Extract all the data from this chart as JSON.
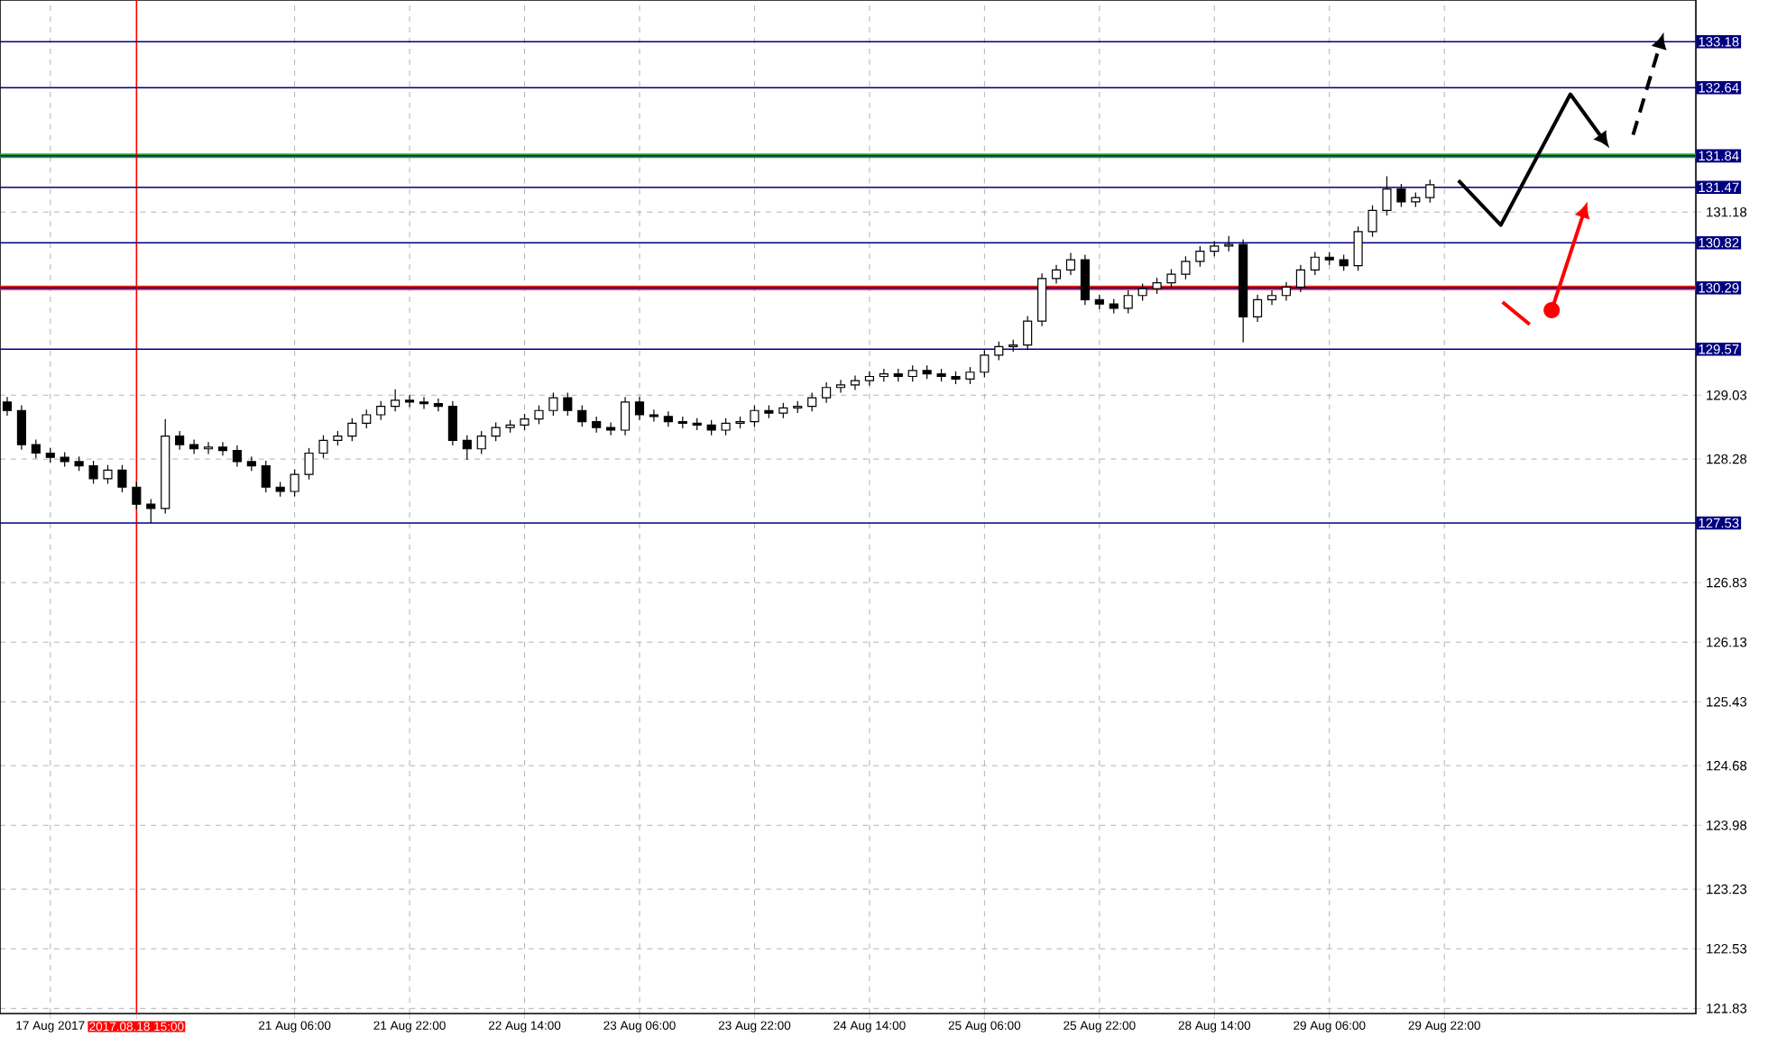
{
  "chart_data": {
    "type": "candlestick",
    "categories": [
      null,
      null,
      null,
      "17 Aug 2017",
      null,
      null,
      null,
      null,
      null,
      "2017.08.18 15:00",
      null,
      null,
      null,
      null,
      null,
      null,
      null,
      null,
      null,
      null,
      "21 Aug 06:00",
      null,
      null,
      null,
      null,
      null,
      null,
      null,
      "21 Aug 22:00",
      null,
      null,
      null,
      null,
      null,
      null,
      null,
      "22 Aug 14:00",
      null,
      null,
      null,
      null,
      null,
      null,
      null,
      "23 Aug 06:00",
      null,
      null,
      null,
      null,
      null,
      null,
      null,
      "23 Aug 22:00",
      null,
      null,
      null,
      null,
      null,
      null,
      null,
      "24 Aug 14:00",
      null,
      null,
      null,
      null,
      null,
      null,
      null,
      "25 Aug 06:00",
      null,
      null,
      null,
      null,
      null,
      null,
      null,
      "25 Aug 22:00",
      null,
      null,
      null,
      null,
      null,
      null,
      null,
      "28 Aug 14:00",
      null,
      null,
      null,
      null,
      null,
      null,
      null,
      "29 Aug 06:00",
      null,
      null,
      null,
      null,
      null,
      null,
      null,
      "29 Aug 22:00",
      null,
      null,
      null,
      null,
      null,
      null,
      null,
      null,
      null,
      null,
      null,
      null,
      null,
      null,
      null,
      null,
      null
    ],
    "ohlc": [
      [
        128.95,
        129.01,
        128.79,
        128.85
      ],
      [
        128.85,
        128.91,
        128.39,
        128.45
      ],
      [
        128.45,
        128.51,
        128.29,
        128.35
      ],
      [
        128.35,
        128.41,
        128.24,
        128.3
      ],
      [
        128.3,
        128.36,
        128.19,
        128.25
      ],
      [
        128.25,
        128.31,
        128.14,
        128.2
      ],
      [
        128.2,
        128.26,
        127.99,
        128.05
      ],
      [
        128.05,
        128.21,
        127.99,
        128.15
      ],
      [
        128.15,
        128.21,
        127.89,
        127.95
      ],
      [
        127.95,
        128.01,
        127.69,
        127.75
      ],
      [
        127.75,
        127.81,
        127.53,
        127.7
      ],
      [
        127.7,
        128.75,
        127.64,
        128.55
      ],
      [
        128.55,
        128.61,
        128.39,
        128.45
      ],
      [
        128.45,
        128.51,
        128.34,
        128.4
      ],
      [
        128.4,
        128.48,
        128.34,
        128.42
      ],
      [
        128.42,
        128.48,
        128.32,
        128.38
      ],
      [
        128.38,
        128.44,
        128.19,
        128.25
      ],
      [
        128.25,
        128.31,
        128.14,
        128.2
      ],
      [
        128.2,
        128.26,
        127.89,
        127.95
      ],
      [
        127.95,
        128.01,
        127.84,
        127.9
      ],
      [
        127.9,
        128.16,
        127.84,
        128.1
      ],
      [
        128.1,
        128.41,
        128.04,
        128.35
      ],
      [
        128.35,
        128.56,
        128.29,
        128.5
      ],
      [
        128.5,
        128.61,
        128.44,
        128.55
      ],
      [
        128.55,
        128.76,
        128.49,
        128.7
      ],
      [
        128.7,
        128.86,
        128.64,
        128.8
      ],
      [
        128.8,
        128.96,
        128.74,
        128.9
      ],
      [
        128.9,
        129.1,
        128.84,
        128.97
      ],
      [
        128.97,
        129.03,
        128.89,
        128.95
      ],
      [
        128.95,
        129.01,
        128.87,
        128.93
      ],
      [
        128.93,
        128.99,
        128.84,
        128.9
      ],
      [
        128.9,
        128.96,
        128.44,
        128.5
      ],
      [
        128.5,
        128.56,
        128.27,
        128.4
      ],
      [
        128.4,
        128.61,
        128.34,
        128.55
      ],
      [
        128.55,
        128.71,
        128.49,
        128.65
      ],
      [
        128.65,
        128.74,
        128.59,
        128.68
      ],
      [
        128.68,
        128.81,
        128.62,
        128.75
      ],
      [
        128.75,
        128.91,
        128.69,
        128.85
      ],
      [
        128.85,
        129.06,
        128.79,
        129.0
      ],
      [
        129.0,
        129.06,
        128.79,
        128.85
      ],
      [
        128.85,
        128.91,
        128.66,
        128.72
      ],
      [
        128.72,
        128.78,
        128.59,
        128.65
      ],
      [
        128.65,
        128.71,
        128.56,
        128.62
      ],
      [
        128.62,
        129.01,
        128.56,
        128.95
      ],
      [
        128.95,
        129.01,
        128.74,
        128.8
      ],
      [
        128.8,
        128.86,
        128.72,
        128.78
      ],
      [
        128.78,
        128.84,
        128.66,
        128.72
      ],
      [
        128.72,
        128.78,
        128.64,
        128.7
      ],
      [
        128.7,
        128.76,
        128.62,
        128.68
      ],
      [
        128.68,
        128.74,
        128.56,
        128.62
      ],
      [
        128.62,
        128.76,
        128.56,
        128.7
      ],
      [
        128.7,
        128.78,
        128.64,
        128.72
      ],
      [
        128.72,
        128.91,
        128.66,
        128.85
      ],
      [
        128.85,
        128.91,
        128.76,
        128.82
      ],
      [
        128.82,
        128.94,
        128.76,
        128.88
      ],
      [
        128.88,
        128.96,
        128.82,
        128.9
      ],
      [
        128.9,
        129.06,
        128.84,
        129.0
      ],
      [
        129.0,
        129.18,
        128.94,
        129.12
      ],
      [
        129.12,
        129.21,
        129.06,
        129.15
      ],
      [
        129.15,
        129.26,
        129.09,
        129.2
      ],
      [
        129.2,
        129.31,
        129.14,
        129.25
      ],
      [
        129.25,
        129.34,
        129.19,
        129.28
      ],
      [
        129.28,
        129.34,
        129.19,
        129.25
      ],
      [
        129.25,
        129.38,
        129.19,
        129.32
      ],
      [
        129.32,
        129.38,
        129.22,
        129.28
      ],
      [
        129.28,
        129.34,
        129.19,
        129.25
      ],
      [
        129.25,
        129.31,
        129.16,
        129.22
      ],
      [
        129.22,
        129.36,
        129.16,
        129.3
      ],
      [
        129.3,
        129.56,
        129.24,
        129.5
      ],
      [
        129.5,
        129.66,
        129.44,
        129.6
      ],
      [
        129.6,
        129.68,
        129.54,
        129.62
      ],
      [
        129.62,
        129.96,
        129.56,
        129.9
      ],
      [
        129.9,
        130.46,
        129.84,
        130.4
      ],
      [
        130.4,
        130.56,
        130.34,
        130.5
      ],
      [
        130.5,
        130.7,
        130.44,
        130.62
      ],
      [
        130.62,
        130.68,
        130.09,
        130.15
      ],
      [
        130.15,
        130.21,
        130.04,
        130.1
      ],
      [
        130.1,
        130.16,
        129.99,
        130.05
      ],
      [
        130.05,
        130.26,
        129.99,
        130.2
      ],
      [
        130.2,
        130.34,
        130.14,
        130.28
      ],
      [
        130.28,
        130.41,
        130.22,
        130.35
      ],
      [
        130.35,
        130.51,
        130.29,
        130.45
      ],
      [
        130.45,
        130.66,
        130.39,
        130.6
      ],
      [
        130.6,
        130.78,
        130.54,
        130.72
      ],
      [
        130.72,
        130.84,
        130.66,
        130.78
      ],
      [
        130.78,
        130.9,
        130.72,
        130.8
      ],
      [
        130.8,
        130.86,
        129.65,
        129.95
      ],
      [
        129.95,
        130.21,
        129.89,
        130.15
      ],
      [
        130.15,
        130.26,
        130.09,
        130.2
      ],
      [
        130.2,
        130.36,
        130.14,
        130.3
      ],
      [
        130.3,
        130.56,
        130.24,
        130.5
      ],
      [
        130.5,
        130.71,
        130.44,
        130.65
      ],
      [
        130.65,
        130.71,
        130.56,
        130.62
      ],
      [
        130.62,
        130.68,
        130.49,
        130.55
      ],
      [
        130.55,
        131.01,
        130.49,
        130.95
      ],
      [
        130.95,
        131.26,
        130.89,
        131.2
      ],
      [
        131.2,
        131.6,
        131.14,
        131.45
      ],
      [
        131.45,
        131.51,
        131.24,
        131.3
      ],
      [
        131.3,
        131.41,
        131.24,
        131.35
      ],
      [
        131.35,
        131.56,
        131.29,
        131.5
      ],
      null,
      null,
      null,
      null,
      null,
      null,
      null,
      null,
      null,
      null,
      null,
      null,
      null,
      null,
      null,
      null,
      null,
      null
    ],
    "ylim": [
      121.77,
      133.67
    ],
    "yticks": [
      121.83,
      122.53,
      123.23,
      123.98,
      124.68,
      125.43,
      126.13,
      126.83,
      128.28,
      129.03,
      131.18
    ],
    "grid": true,
    "ref_lines": [
      {
        "axis": "y",
        "value": 131.84,
        "color": "#2ca02c"
      },
      {
        "axis": "y",
        "value": 130.29,
        "color": "#ee2222"
      },
      {
        "axis": "x",
        "value": "2017.08.18 15:00",
        "color": "#ff0000"
      },
      {
        "axis": "y",
        "value": 133.18,
        "label": "133.18",
        "color": "#000080"
      },
      {
        "axis": "y",
        "value": 132.64,
        "label": "132.64",
        "color": "#000080"
      },
      {
        "axis": "y",
        "value": 131.84,
        "label": "131.84",
        "color": "#000080"
      },
      {
        "axis": "y",
        "value": 131.47,
        "label": "131.47",
        "color": "#000080"
      },
      {
        "axis": "y",
        "value": 130.82,
        "label": "130.82",
        "color": "#000080"
      },
      {
        "axis": "y",
        "value": 130.29,
        "label": "130.29",
        "color": "#000080"
      },
      {
        "axis": "y",
        "value": 129.57,
        "label": "129.57",
        "color": "#000080"
      },
      {
        "axis": "y",
        "value": 127.53,
        "label": "127.53",
        "color": "#000080"
      }
    ]
  }
}
